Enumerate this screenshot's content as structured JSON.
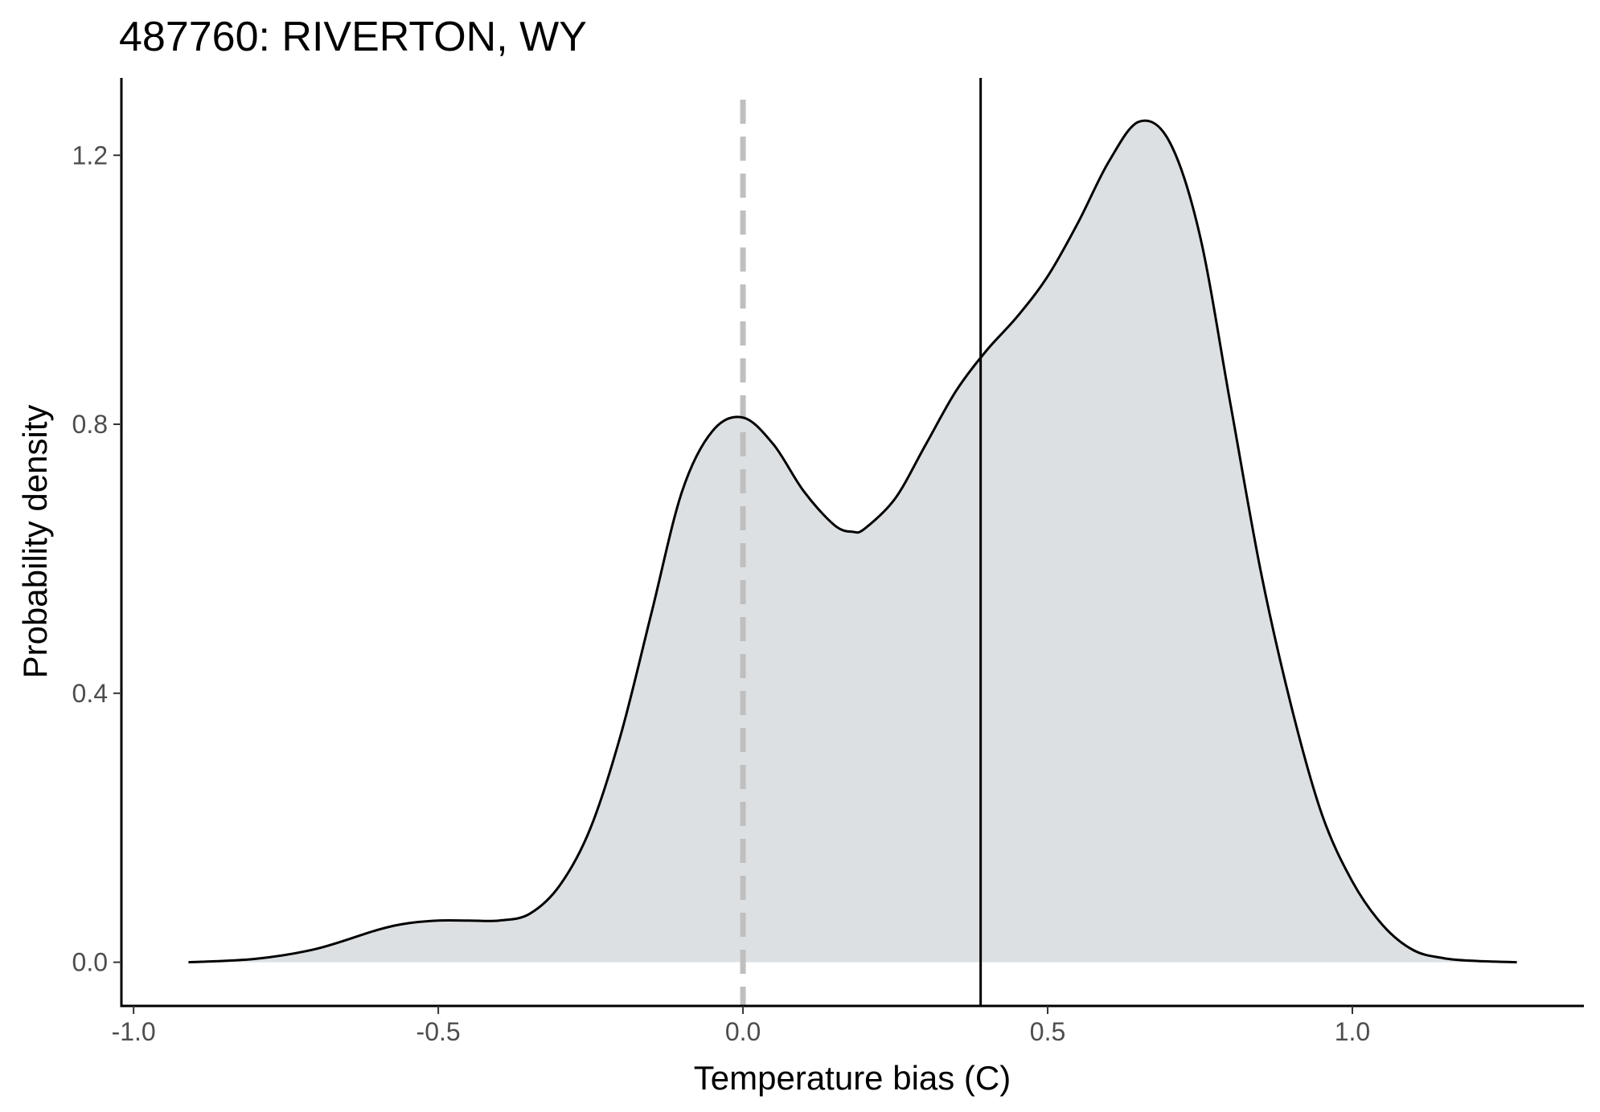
{
  "chart_data": {
    "type": "area",
    "title": "487760: RIVERTON, WY",
    "xlabel": "Temperature bias (C)",
    "ylabel": "Probability density",
    "xlim": [
      -1.02,
      1.38
    ],
    "ylim": [
      -0.065,
      1.315
    ],
    "x_ticks": [
      -1.0,
      -0.5,
      0.0,
      0.5,
      1.0
    ],
    "x_tick_labels": [
      "-1.0",
      "-0.5",
      "0.0",
      "0.5",
      "1.0"
    ],
    "y_ticks": [
      0.0,
      0.4,
      0.8,
      1.2
    ],
    "y_tick_labels": [
      "0.0",
      "0.4",
      "0.8",
      "1.2"
    ],
    "grid": false,
    "density": {
      "x": [
        -0.91,
        -0.8,
        -0.7,
        -0.6,
        -0.55,
        -0.5,
        -0.45,
        -0.4,
        -0.35,
        -0.3,
        -0.25,
        -0.2,
        -0.15,
        -0.1,
        -0.05,
        0.0,
        0.05,
        0.1,
        0.15,
        0.18,
        0.2,
        0.25,
        0.3,
        0.35,
        0.4,
        0.45,
        0.5,
        0.55,
        0.6,
        0.65,
        0.7,
        0.75,
        0.8,
        0.85,
        0.9,
        0.95,
        1.0,
        1.05,
        1.1,
        1.15,
        1.2,
        1.27
      ],
      "y": [
        0.0,
        0.005,
        0.02,
        0.048,
        0.058,
        0.062,
        0.062,
        0.062,
        0.072,
        0.115,
        0.2,
        0.34,
        0.52,
        0.7,
        0.79,
        0.81,
        0.77,
        0.7,
        0.65,
        0.64,
        0.645,
        0.69,
        0.77,
        0.85,
        0.91,
        0.96,
        1.02,
        1.1,
        1.19,
        1.25,
        1.22,
        1.08,
        0.83,
        0.58,
        0.38,
        0.22,
        0.12,
        0.055,
        0.018,
        0.006,
        0.002,
        0.0
      ],
      "fill_color": "#dce0e3",
      "line_color": "#000000"
    },
    "reference_lines": [
      {
        "x": 0.0,
        "style": "dashed",
        "color": "#bfbfbf"
      },
      {
        "x": 0.39,
        "style": "solid",
        "color": "#000000"
      }
    ]
  }
}
